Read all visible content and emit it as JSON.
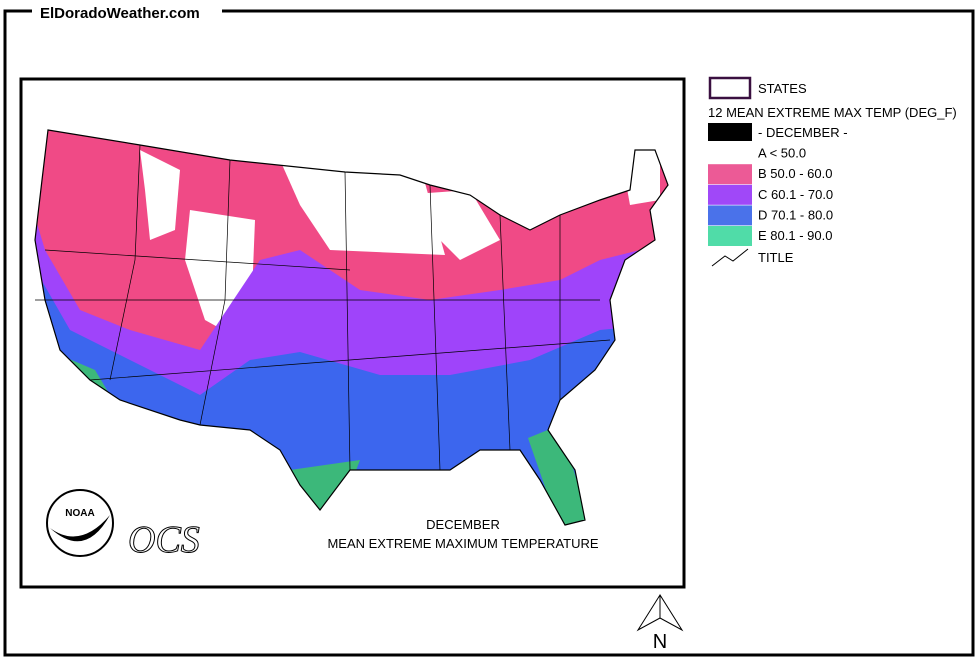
{
  "header": {
    "title": "ElDoradoWeather.com"
  },
  "legend": {
    "states_label": "STATES",
    "variable": "12 MEAN EXTREME MAX TEMP (DEG_F)",
    "items": [
      {
        "label": "- DECEMBER -",
        "color": "#000000"
      },
      {
        "label": "A < 50.0",
        "color": "#ffffff"
      },
      {
        "label": "B 50.0 - 60.0",
        "color": "#ec5a96"
      },
      {
        "label": "C 60.1 - 70.0",
        "color": "#a048f8"
      },
      {
        "label": "D 70.1 - 80.0",
        "color": "#4a72ea"
      },
      {
        "label": "E 80.1 - 90.0",
        "color": "#50dca8"
      }
    ],
    "title_label": "TITLE"
  },
  "map": {
    "caption": [
      "DECEMBER",
      "MEAN EXTREME MAXIMUM TEMPERATURE"
    ],
    "logo": "NOAA",
    "agency": "OCS",
    "north": "N"
  }
}
